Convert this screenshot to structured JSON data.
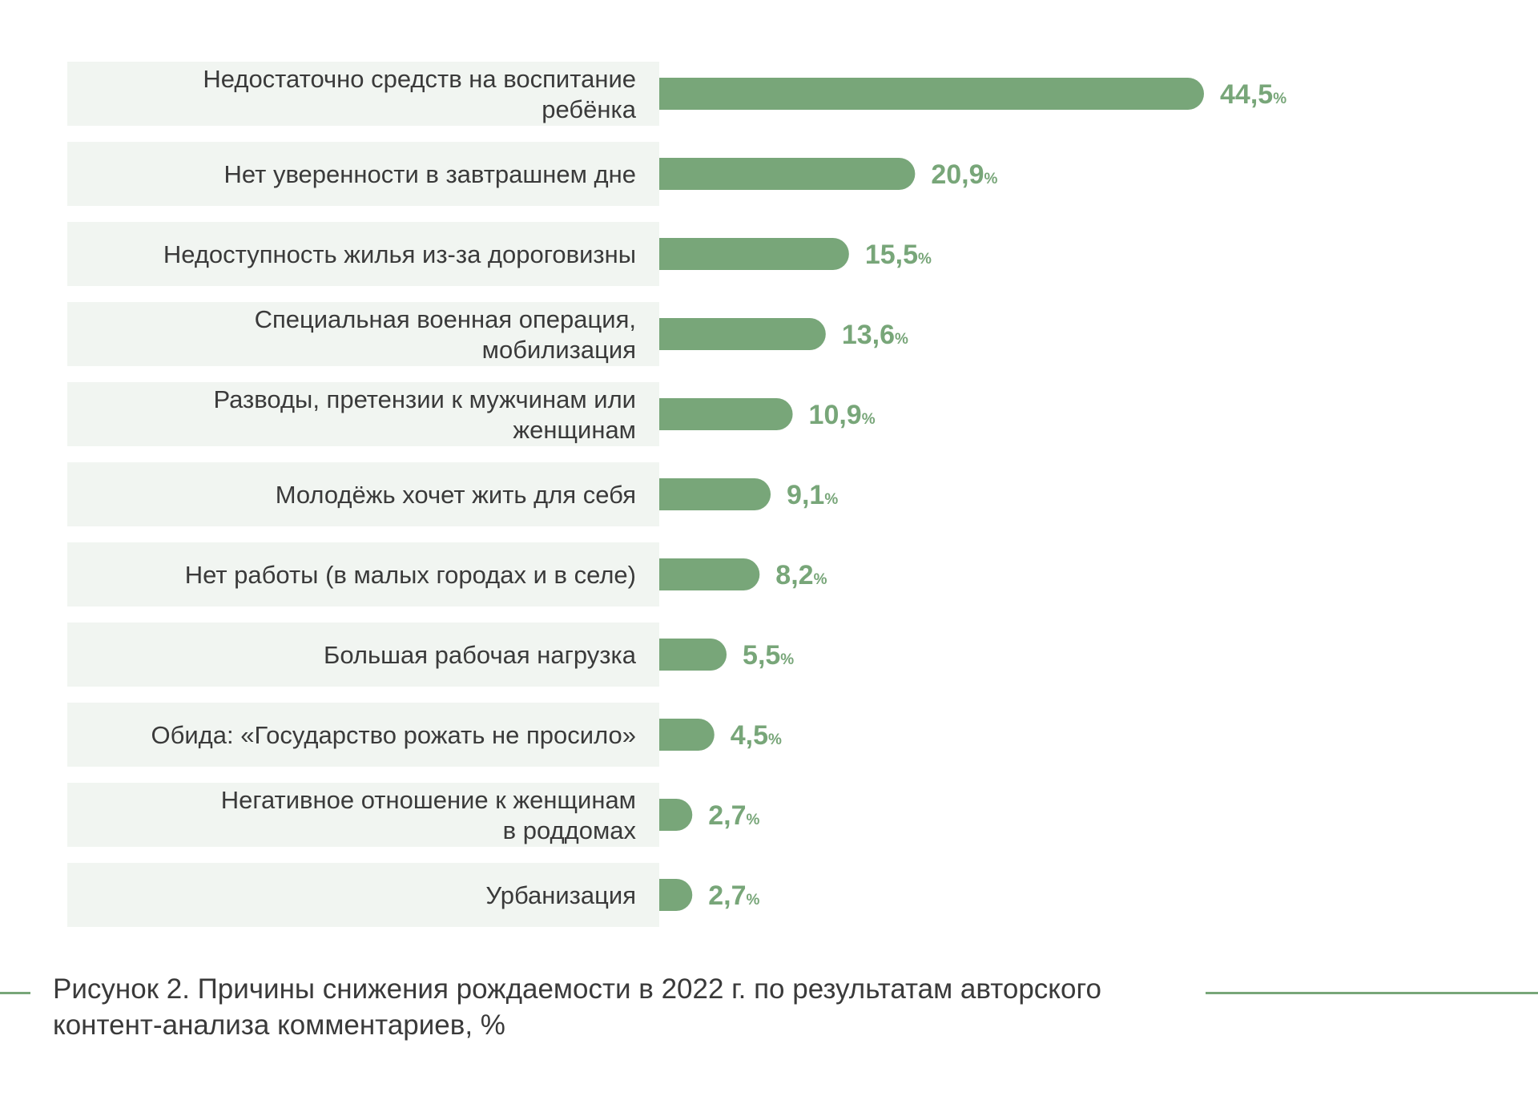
{
  "chart_data": {
    "type": "bar",
    "orientation": "horizontal",
    "categories": [
      "Недостаточно средств на воспитание ребёнка",
      "Нет уверенности в завтрашнем дне",
      "Недоступность жилья из-за дороговизны",
      "Специальная военная операция, мобилизация",
      "Разводы, претензии к мужчинам или женщинам",
      "Молодёжь хочет жить для себя",
      "Нет работы (в малых городах и в селе)",
      "Большая рабочая нагрузка",
      "Обида: «Государство рожать не просило»",
      "Негативное отношение к женщинам в роддомах",
      "Урбанизация"
    ],
    "category_lines": [
      [
        "Недостаточно средств на воспитание",
        "ребёнка"
      ],
      [
        "Нет уверенности в завтрашнем дне"
      ],
      [
        "Недоступность жилья из-за дороговизны"
      ],
      [
        "Специальная военная операция,",
        "мобилизация"
      ],
      [
        "Разводы, претензии к мужчинам или",
        "женщинам"
      ],
      [
        "Молодёжь хочет жить для себя"
      ],
      [
        "Нет работы (в малых городах и в селе)"
      ],
      [
        "Большая рабочая нагрузка"
      ],
      [
        "Обида: «Государство рожать не просило»"
      ],
      [
        "Негативное отношение к женщинам",
        "в роддомах"
      ],
      [
        "Урбанизация"
      ]
    ],
    "values": [
      44.5,
      20.9,
      15.5,
      13.6,
      10.9,
      9.1,
      8.2,
      5.5,
      4.5,
      2.7,
      2.7
    ],
    "value_labels": [
      "44,5",
      "20,9",
      "15,5",
      "13,6",
      "10,9",
      "9,1",
      "8,2",
      "5,5",
      "4,5",
      "2,7",
      "2,7"
    ],
    "unit": "%",
    "xlim": [
      0,
      44.5
    ],
    "grid": false,
    "legend": "none",
    "colors": {
      "bar": "#78a679",
      "value_text": "#78a679",
      "label_band": "#f1f5f1",
      "label_text": "#3a3a3a"
    }
  },
  "caption": "Рисунок 2. Причины снижения рождаемости в 2022 г. по результатам авторского контент-анализа комментариев, %"
}
